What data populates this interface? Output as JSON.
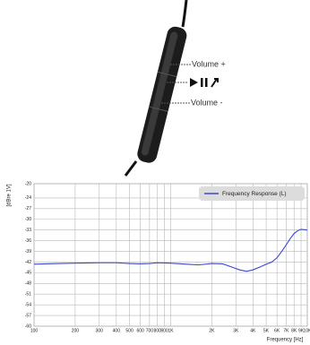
{
  "remote": {
    "volume_up": "Volume +",
    "volume_down": "Volume -"
  },
  "chart_data": {
    "type": "line",
    "y_label": "[dBre 1V]",
    "x_label": "Frequency  [Hz]",
    "xscale": "log",
    "grid": true,
    "legend": "upper right",
    "xlim": [
      100,
      10000
    ],
    "ylim": [
      -60,
      -20
    ],
    "xticks": [
      100,
      200,
      300,
      400,
      500,
      600,
      700,
      800,
      900,
      {
        "value": 1000,
        "label": "1K"
      },
      {
        "value": 2000,
        "label": "2K"
      },
      {
        "value": 3000,
        "label": "3K"
      },
      {
        "value": 4000,
        "label": "4K"
      },
      {
        "value": 5000,
        "label": "5K"
      },
      {
        "value": 6000,
        "label": "6K"
      },
      {
        "value": 7000,
        "label": "7K"
      },
      {
        "value": 8000,
        "label": "8K"
      },
      {
        "value": 9000,
        "label": "9K"
      },
      {
        "value": 10000,
        "label": "10K"
      }
    ],
    "yticks": [
      -20,
      -24,
      -27,
      -30,
      -33,
      -36,
      -39,
      -42,
      -45,
      -48,
      -51,
      -54,
      -57,
      -60
    ],
    "x": [
      100,
      150,
      200,
      300,
      400,
      500,
      600,
      700,
      800,
      1000,
      1300,
      1600,
      2000,
      2400,
      2800,
      3200,
      3600,
      4000,
      4500,
      5000,
      5500,
      6000,
      6500,
      7000,
      7500,
      8000,
      8500,
      9000,
      9500,
      10000
    ],
    "series": [
      {
        "name": "Frequency Response  (L)",
        "color": "#3a48d0",
        "values": [
          -42.6,
          -42.4,
          -42.3,
          -42.2,
          -42.2,
          -42.4,
          -42.5,
          -42.4,
          -42.2,
          -42.3,
          -42.6,
          -42.8,
          -42.4,
          -42.5,
          -43.4,
          -44.2,
          -44.6,
          -44.2,
          -43.4,
          -42.6,
          -42.0,
          -40.8,
          -39.0,
          -37.2,
          -35.4,
          -34.0,
          -33.2,
          -32.8,
          -32.9,
          -33.0
        ]
      }
    ]
  }
}
